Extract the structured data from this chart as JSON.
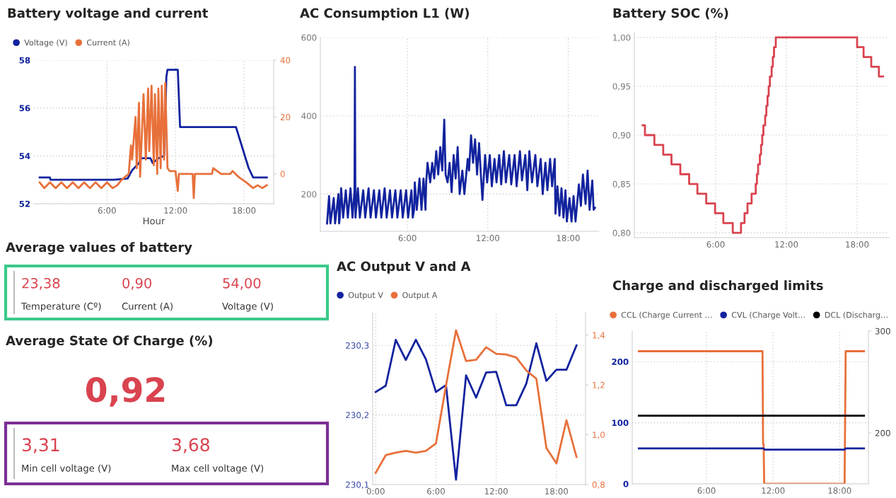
{
  "chart_data": [
    {
      "type": "line",
      "title": "Battery voltage and current",
      "xlabel": "Hour",
      "legend": "top left",
      "grid": true,
      "marker": "none",
      "line_style": "solid",
      "xlim": [
        -0.4,
        20.6
      ],
      "xticks": [
        {
          "value": 6,
          "label": "6:00"
        },
        {
          "value": 12,
          "label": "12:00"
        },
        {
          "value": 18,
          "label": "18:00"
        }
      ],
      "ylim": [
        52,
        58
      ],
      "yticks": [
        52,
        54,
        56,
        58
      ],
      "y2lim": [
        -10.5,
        40
      ],
      "y2ticks": [
        0,
        20,
        40
      ],
      "series": [
        {
          "name": "Voltage (V)",
          "color": "#12239e",
          "x": [
            0.1,
            1.0,
            1.05,
            6.6,
            7.8,
            8.2,
            8.8,
            9.0,
            9.8,
            10.0,
            10.5,
            11.0,
            11.2,
            11.3,
            12.2,
            12.4,
            17.3,
            18.4,
            18.8,
            20.0
          ],
          "values": [
            53.1,
            53.1,
            53.0,
            53.0,
            53.05,
            53.4,
            53.7,
            53.9,
            53.9,
            53.7,
            53.9,
            54.0,
            57.3,
            57.6,
            57.6,
            55.2,
            55.2,
            53.5,
            53.1,
            53.1
          ]
        },
        {
          "name": "Current (A)",
          "color": "#e8703a",
          "axis": "y2",
          "x": [
            0.1,
            0.5,
            1.0,
            1.5,
            2.0,
            2.5,
            3.0,
            3.5,
            4.0,
            4.5,
            5.0,
            5.5,
            6.0,
            6.5,
            6.9,
            7.3,
            7.6,
            7.9,
            8.1,
            8.2,
            8.5,
            8.6,
            8.8,
            8.9,
            9.2,
            9.4,
            9.6,
            9.7,
            9.9,
            10.1,
            10.2,
            10.4,
            10.5,
            10.7,
            10.8,
            11.0,
            11.1,
            11.3,
            11.5,
            12.0,
            12.2,
            12.3,
            13.0,
            13.5,
            13.6,
            13.7,
            14.5,
            15.2,
            15.3,
            16.0,
            16.8,
            17.0,
            17.5,
            18.2,
            18.8,
            19.2,
            19.6,
            20.0
          ],
          "values": [
            -3,
            -5,
            -3,
            -5,
            -3,
            -5,
            -3,
            -5,
            -3,
            -5,
            -3,
            -5,
            -3,
            -5,
            -4,
            -2,
            -1,
            0,
            10,
            5,
            20,
            2,
            25,
            -1,
            28,
            5,
            30,
            8,
            31,
            3,
            28,
            0,
            30,
            2,
            31,
            5,
            32,
            2,
            1,
            1,
            -6,
            0,
            0,
            0,
            -8.5,
            0,
            0,
            0,
            2,
            0,
            0,
            1,
            -1,
            -3,
            -5,
            -4,
            -5,
            -4
          ]
        }
      ]
    },
    {
      "type": "line",
      "title": "AC Consumption L1 (W)",
      "grid": true,
      "marker": "none",
      "line_style": "solid",
      "xlim": [
        -0.5,
        20.3
      ],
      "xticks": [
        {
          "value": 6,
          "label": "6:00"
        },
        {
          "value": 12,
          "label": "12:00"
        },
        {
          "value": 18,
          "label": "18:00"
        }
      ],
      "ylim": [
        105,
        600
      ],
      "yticks": [
        200,
        400,
        600
      ],
      "series": [
        {
          "color": "#12239e",
          "x": [
            0.0,
            0.15,
            0.25,
            0.5,
            0.6,
            0.85,
            0.9,
            0.95,
            1.05,
            1.2,
            1.4,
            1.55,
            1.75,
            1.9,
            2.05,
            2.08,
            2.12,
            2.3,
            2.45,
            2.7,
            2.85,
            3.1,
            3.25,
            3.5,
            3.65,
            3.9,
            4.05,
            4.3,
            4.45,
            4.7,
            4.85,
            5.1,
            5.25,
            5.5,
            5.65,
            5.9,
            6.05,
            6.3,
            6.4,
            6.5,
            6.55,
            6.7,
            6.9,
            7.05,
            7.2,
            7.35,
            7.4,
            7.5,
            7.7,
            7.85,
            8.0,
            8.15,
            8.3,
            8.45,
            8.6,
            8.75,
            8.85,
            9.0,
            9.15,
            9.3,
            9.45,
            9.6,
            9.75,
            9.9,
            10.1,
            10.25,
            10.5,
            10.6,
            10.75,
            10.9,
            11.05,
            11.2,
            11.35,
            11.5,
            11.6,
            11.8,
            11.95,
            12.15,
            12.3,
            12.5,
            12.65,
            12.85,
            13.0,
            13.2,
            13.35,
            13.6,
            13.75,
            14.0,
            14.15,
            14.4,
            14.55,
            14.8,
            14.95,
            15.1,
            15.3,
            15.55,
            15.7,
            15.95,
            16.1,
            16.3,
            16.45,
            16.65,
            16.8,
            17.0,
            17.05,
            17.2,
            17.35,
            17.5,
            17.65,
            17.8,
            17.9,
            18.1,
            18.25,
            18.4,
            18.55,
            18.8,
            18.95,
            19.1,
            19.3,
            19.45,
            19.6,
            19.8,
            19.9,
            20.0
          ],
          "values": [
            125,
            195,
            125,
            190,
            125,
            200,
            125,
            140,
            215,
            140,
            210,
            140,
            215,
            140,
            210,
            525,
            140,
            215,
            140,
            210,
            140,
            215,
            140,
            210,
            140,
            210,
            140,
            215,
            140,
            210,
            140,
            210,
            140,
            210,
            140,
            210,
            140,
            210,
            140,
            160,
            230,
            160,
            240,
            160,
            240,
            160,
            230,
            280,
            230,
            280,
            240,
            310,
            250,
            320,
            260,
            390,
            250,
            230,
            280,
            205,
            300,
            240,
            320,
            200,
            260,
            200,
            290,
            260,
            350,
            280,
            340,
            250,
            330,
            240,
            185,
            300,
            230,
            300,
            220,
            290,
            230,
            300,
            225,
            310,
            230,
            300,
            225,
            300,
            220,
            310,
            235,
            300,
            210,
            310,
            230,
            300,
            220,
            290,
            200,
            280,
            210,
            290,
            220,
            290,
            150,
            220,
            145,
            215,
            140,
            210,
            130,
            190,
            130,
            195,
            130,
            225,
            170,
            250,
            175,
            260,
            160,
            235,
            160,
            165
          ]
        }
      ]
    },
    {
      "type": "step",
      "title": "Battery SOC (%)",
      "grid": true,
      "marker": "none",
      "line_style": "solid",
      "xlim": [
        -0.9,
        20.7
      ],
      "xticks": [
        {
          "value": 6,
          "label": "6:00"
        },
        {
          "value": 12,
          "label": "12:00"
        },
        {
          "value": 18,
          "label": "18:00"
        }
      ],
      "ylim": [
        0.795,
        1.005
      ],
      "yticks": [
        {
          "value": 0.8,
          "label": "0,80"
        },
        {
          "value": 0.85,
          "label": "0,85"
        },
        {
          "value": 0.9,
          "label": "0,90"
        },
        {
          "value": 0.95,
          "label": "0,95"
        },
        {
          "value": 1.0,
          "label": "1,00"
        }
      ],
      "series": [
        {
          "color": "#d9434f",
          "x": [
            -0.2,
            0.0,
            0.8,
            1.55,
            2.25,
            3.0,
            3.75,
            4.45,
            5.2,
            5.95,
            6.65,
            7.45,
            8.15,
            8.45,
            8.7,
            9.05,
            9.4,
            9.5,
            9.6,
            9.75,
            9.85,
            9.95,
            10.05,
            10.2,
            10.3,
            10.4,
            10.5,
            10.6,
            10.75,
            10.85,
            10.95,
            11.1,
            18.0,
            18.55,
            19.2,
            19.85,
            20.2
          ],
          "values": [
            0.91,
            0.9,
            0.89,
            0.88,
            0.87,
            0.86,
            0.85,
            0.84,
            0.83,
            0.82,
            0.81,
            0.8,
            0.81,
            0.82,
            0.83,
            0.84,
            0.85,
            0.86,
            0.87,
            0.88,
            0.89,
            0.9,
            0.91,
            0.92,
            0.93,
            0.94,
            0.95,
            0.96,
            0.97,
            0.98,
            0.99,
            1.0,
            0.99,
            0.98,
            0.97,
            0.96,
            0.96
          ]
        }
      ]
    },
    {
      "type": "other",
      "title": "Average values of battery",
      "categories": [
        "Temperature (Cº)",
        "Current (A)",
        "Voltage (V)"
      ],
      "value_labels": [
        "23,38",
        "0,90",
        "54,00"
      ],
      "color": "#d9434f"
    },
    {
      "type": "other",
      "title": "Average State Of Charge (%)",
      "categories": [
        null,
        "Min cell voltage (V)",
        "Max cell voltage (V)"
      ],
      "value_labels": [
        "0,92",
        "3,31",
        "3,68"
      ],
      "color": "#d9434f"
    },
    {
      "type": "line",
      "title": "AC Output V and A",
      "legend": "top left",
      "grid": true,
      "marker": "none",
      "line_style": "solid",
      "xlim": [
        -0.3,
        20.9
      ],
      "xticks": [
        {
          "value": 0,
          "label": "0:00"
        },
        {
          "value": 6,
          "label": "6:00"
        },
        {
          "value": 12,
          "label": "12:00"
        },
        {
          "value": 18,
          "label": "18:00"
        }
      ],
      "ylim": [
        230.1,
        230.347
      ],
      "yticks": [
        {
          "value": 230.1,
          "label": "230,1"
        },
        {
          "value": 230.2,
          "label": "230,2"
        },
        {
          "value": 230.3,
          "label": "230,3"
        }
      ],
      "y2lim": [
        0.8,
        1.49
      ],
      "y2ticks": [
        {
          "value": 0.8,
          "label": "0,8"
        },
        {
          "value": 1.0,
          "label": "1,0"
        },
        {
          "value": 1.2,
          "label": "1,2"
        },
        {
          "value": 1.4,
          "label": "1,4"
        }
      ],
      "series": [
        {
          "name": "Output V",
          "color": "#12239e",
          "x": [
            0,
            1,
            2,
            3,
            4,
            5,
            6,
            7,
            8,
            9,
            10,
            11,
            12,
            13,
            14,
            15,
            16,
            17,
            18,
            19,
            20
          ],
          "values": [
            230.233,
            230.242,
            230.308,
            230.279,
            230.308,
            230.28,
            230.233,
            230.243,
            230.107,
            230.257,
            230.225,
            230.261,
            230.262,
            230.214,
            230.214,
            230.245,
            230.303,
            230.249,
            230.265,
            230.265,
            230.3
          ]
        },
        {
          "name": "Output A",
          "color": "#e8703a",
          "axis": "y2",
          "x": [
            0,
            1,
            2,
            3,
            4,
            5,
            6,
            7,
            8,
            9,
            10,
            11,
            12,
            13,
            14,
            15,
            16,
            17,
            18,
            19,
            20
          ],
          "values": [
            0.847,
            0.918,
            0.928,
            0.935,
            0.928,
            0.935,
            0.965,
            1.197,
            1.419,
            1.296,
            1.301,
            1.351,
            1.325,
            1.322,
            1.31,
            1.258,
            1.225,
            0.947,
            0.885,
            1.058,
            0.911
          ]
        }
      ]
    },
    {
      "type": "line",
      "title": "Charge and discharged limits",
      "legend": "top left",
      "grid": true,
      "marker": "none",
      "line_style": "solid",
      "xlim": [
        -0.7,
        20.6
      ],
      "xticks": [
        {
          "value": 6,
          "label": "6:00"
        },
        {
          "value": 12,
          "label": "12:00"
        },
        {
          "value": 18,
          "label": "18:00"
        }
      ],
      "ylim": [
        0,
        250
      ],
      "yticks": [
        0,
        100,
        200
      ],
      "y2lim": [
        150,
        300
      ],
      "y2ticks": [
        200,
        300
      ],
      "series": [
        {
          "name": "CCL (Charge Current …",
          "color": "#e8703a",
          "x": [
            -0.1,
            11.05,
            11.1,
            11.15,
            11.2,
            18.45,
            18.55,
            20.2
          ],
          "values": [
            217,
            217,
            65,
            65,
            0,
            0,
            217,
            217
          ]
        },
        {
          "name": "CVL (Charge Volt…",
          "color": "#12239e",
          "x": [
            -0.1,
            11.15,
            11.25,
            18.45,
            18.55,
            20.2
          ],
          "values": [
            58,
            58,
            56,
            56,
            58,
            58
          ]
        },
        {
          "name": "DCL (Discharg…",
          "color": "#000000",
          "axis": "y2",
          "x": [
            -0.1,
            20.2
          ],
          "values": [
            217,
            217
          ]
        }
      ]
    }
  ]
}
